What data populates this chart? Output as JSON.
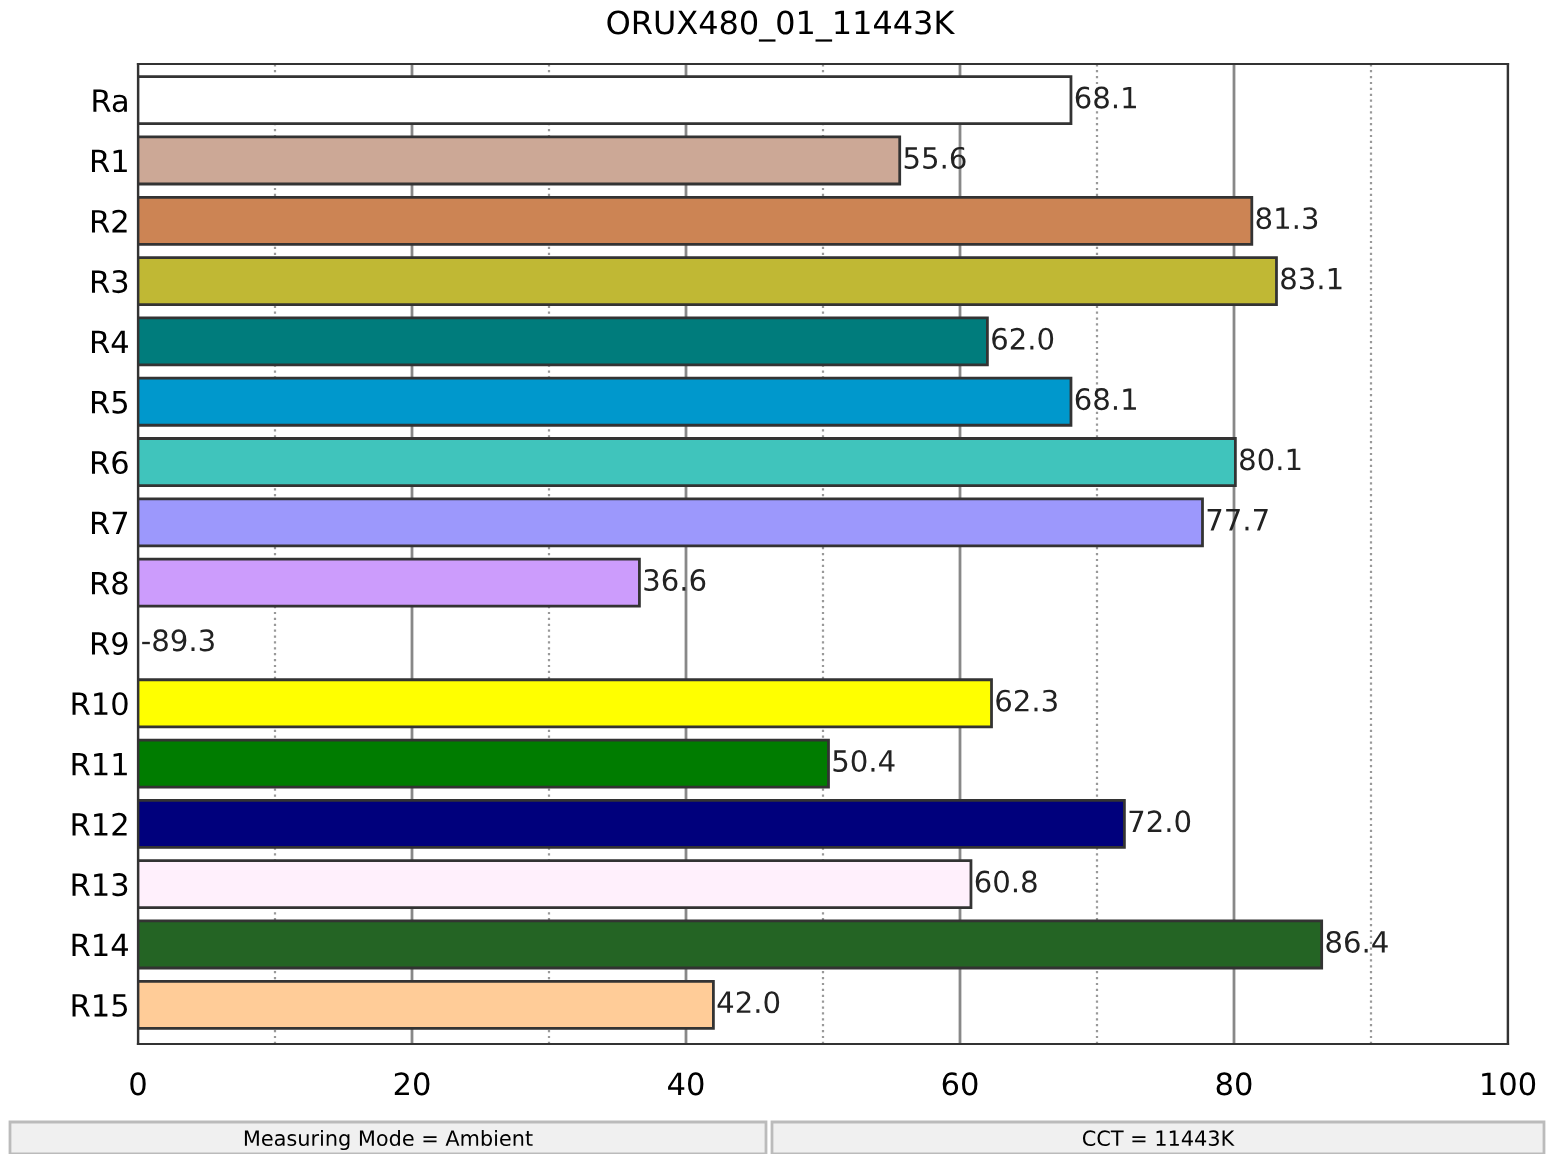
{
  "chart_data": {
    "type": "bar",
    "orientation": "horizontal",
    "title": "ORUX480_01_11443K",
    "categories": [
      "Ra",
      "R1",
      "R2",
      "R3",
      "R4",
      "R5",
      "R6",
      "R7",
      "R8",
      "R9",
      "R10",
      "R11",
      "R12",
      "R13",
      "R14",
      "R15"
    ],
    "values": [
      68.1,
      55.6,
      81.3,
      83.1,
      62.0,
      68.1,
      80.1,
      77.7,
      36.6,
      null,
      62.3,
      50.4,
      72.0,
      60.8,
      86.4,
      42.0
    ],
    "value_labels": [
      "68.1",
      "55.6",
      "81.3",
      "83.1",
      "62.0",
      "68.1",
      "80.1",
      "77.7",
      "36.6",
      "-89.3",
      "62.3",
      "50.4",
      "72.0",
      "60.8",
      "86.4",
      "42.0"
    ],
    "colors": [
      "#ffffff",
      "#cca896",
      "#cc8454",
      "#c0b834",
      "#007c7c",
      "#0098cc",
      "#40c4bc",
      "#9c98fc",
      "#cc9cfc",
      "#ffffff",
      "#ffff00",
      "#007c00",
      "#00007c",
      "#fff0fc",
      "#246424",
      "#ffcc98"
    ],
    "xlim": [
      0,
      100
    ],
    "xticks": [
      0,
      {
        "value": 10,
        "label": null
      },
      20,
      {
        "value": 30,
        "label": null
      },
      40,
      {
        "value": 50,
        "label": null
      },
      60,
      {
        "value": 70,
        "label": null
      },
      80,
      {
        "value": 90,
        "label": null
      },
      100
    ],
    "grid": "x",
    "annotations": [
      "Measuring Mode = Ambient",
      "CCT = 11443K"
    ]
  }
}
